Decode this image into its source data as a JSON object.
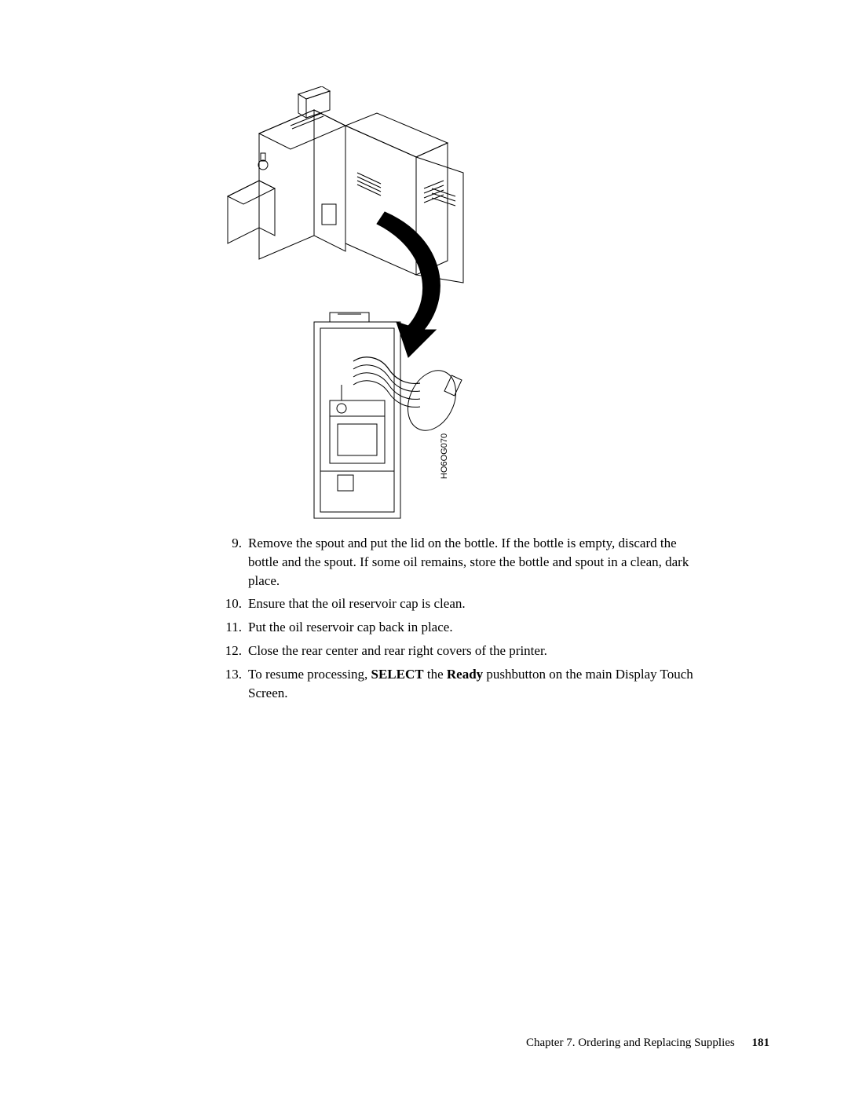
{
  "figure": {
    "label": "HO6OG070",
    "stroke": "#000000",
    "label_fontsize": 11
  },
  "steps": [
    {
      "num": "9.",
      "parts": [
        {
          "text": "Remove the spout and put the lid on the bottle. If the bottle is empty, discard the bottle and the spout. If some oil remains, store the bottle and spout in a clean, dark place.",
          "bold": false
        }
      ]
    },
    {
      "num": "10.",
      "parts": [
        {
          "text": "Ensure that the oil reservoir cap is clean.",
          "bold": false
        }
      ]
    },
    {
      "num": "11.",
      "parts": [
        {
          "text": "Put the oil reservoir cap back in place.",
          "bold": false
        }
      ]
    },
    {
      "num": "12.",
      "parts": [
        {
          "text": "Close the rear center and rear right covers of the printer.",
          "bold": false
        }
      ]
    },
    {
      "num": "13.",
      "parts": [
        {
          "text": "To resume processing, ",
          "bold": false
        },
        {
          "text": "SELECT",
          "bold": true
        },
        {
          "text": " the ",
          "bold": false
        },
        {
          "text": "Ready",
          "bold": true
        },
        {
          "text": " pushbutton on the main Display Touch Screen.",
          "bold": false
        }
      ]
    }
  ],
  "footer": {
    "chapter": "Chapter 7. Ordering and Replacing Supplies",
    "page": "181"
  },
  "body_fontsize": 17,
  "text_color": "#000000",
  "background_color": "#ffffff"
}
